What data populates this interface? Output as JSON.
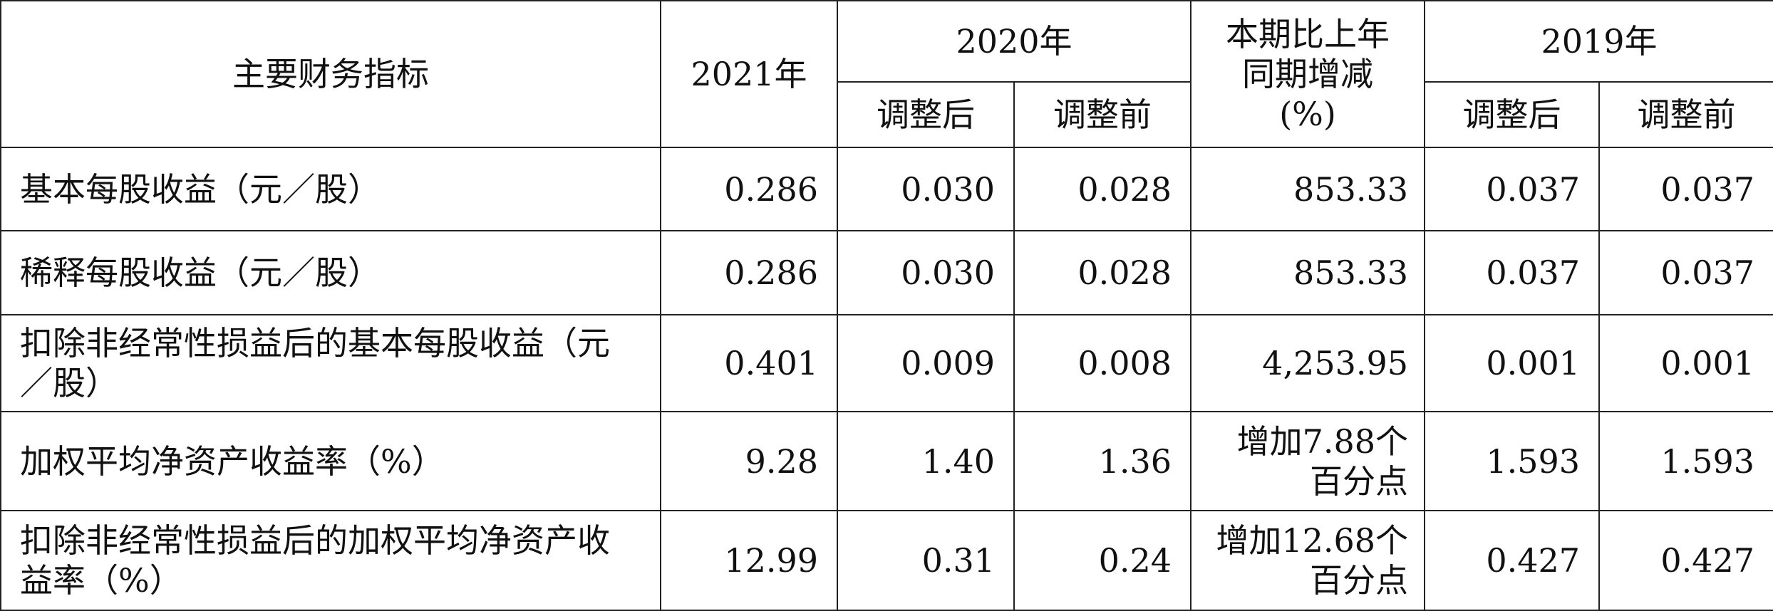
{
  "table": {
    "header": {
      "indicator": "主要财务指标",
      "year_2021": "2021年",
      "year_2020": "2020年",
      "change_lines": [
        "本期比上年",
        "同期增减",
        "(%)"
      ],
      "year_2019": "2019年",
      "adjusted_after": "调整后",
      "adjusted_before": "调整前"
    },
    "rows": [
      [
        "基本每股收益（元／股）",
        "0.286",
        "0.030",
        "0.028",
        "853.33",
        "0.037",
        "0.037"
      ],
      [
        "稀释每股收益（元／股）",
        "0.286",
        "0.030",
        "0.028",
        "853.33",
        "0.037",
        "0.037"
      ],
      [
        "扣除非经常性损益后的基本每股收益（元／股）",
        "0.401",
        "0.009",
        "0.008",
        "4,253.95",
        "0.001",
        "0.001"
      ],
      [
        "加权平均净资产收益率（%）",
        "9.28",
        "1.40",
        "1.36",
        "增加7.88个百分点",
        "1.593",
        "1.593"
      ],
      [
        "扣除非经常性损益后的加权平均净资产收益率（%）",
        "12.99",
        "0.31",
        "0.24",
        "增加12.68个百分点",
        "0.427",
        "0.427"
      ]
    ]
  }
}
